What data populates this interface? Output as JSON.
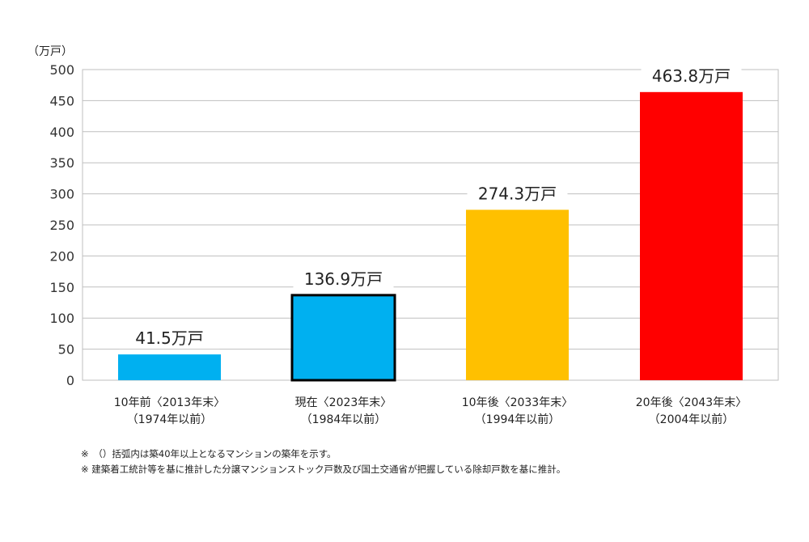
{
  "chart_data": {
    "type": "bar",
    "unit_label": "（万戸）",
    "categories": [
      {
        "line1": "10年前〈2013年末〉",
        "line2": "（1974年以前）"
      },
      {
        "line1": "現在〈2023年末〉",
        "line2": "（1984年以前）"
      },
      {
        "line1": "10年後〈2033年末〉",
        "line2": "（1994年以前）"
      },
      {
        "line1": "20年後〈2043年末〉",
        "line2": "（2004年以前）"
      }
    ],
    "values": [
      41.5,
      136.9,
      274.3,
      463.8
    ],
    "data_labels": [
      "41.5万戸",
      "136.9万戸",
      "274.3万戸",
      "463.8万戸"
    ],
    "colors": [
      "#00b0f0",
      "#00b0f0",
      "#ffc000",
      "#ff0000"
    ],
    "highlighted_index": 1,
    "ylim": [
      0,
      500
    ],
    "yticks": [
      0,
      50,
      100,
      150,
      200,
      250,
      300,
      350,
      400,
      450,
      500
    ],
    "grid": true
  },
  "notes": [
    "※　（）括弧内は築40年以上となるマンションの築年を示す。",
    "※ 建築着工統計等を基に推計した分譲マンションストック戸数及び国土交通省が把握している除却戸数を基に推計。"
  ]
}
